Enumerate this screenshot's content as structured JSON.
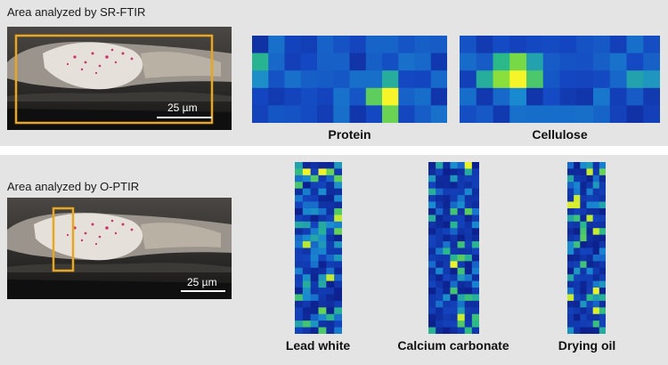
{
  "top": {
    "area_label": "Area analyzed by SR-FTIR",
    "scale_label": "25 µm",
    "maps": [
      {
        "label": "Protein",
        "rows": 5,
        "cols": 12,
        "hot": [
          [
            3,
            8,
            1.0
          ],
          [
            3,
            7,
            0.72
          ],
          [
            4,
            8,
            0.75
          ],
          [
            2,
            8,
            0.55
          ],
          [
            1,
            0,
            0.58
          ],
          [
            2,
            0,
            0.42
          ]
        ]
      },
      {
        "label": "Cellulose",
        "rows": 5,
        "cols": 12,
        "hot": [
          [
            2,
            3,
            1.0
          ],
          [
            2,
            2,
            0.82
          ],
          [
            1,
            3,
            0.78
          ],
          [
            1,
            2,
            0.6
          ],
          [
            2,
            4,
            0.68
          ],
          [
            2,
            1,
            0.55
          ],
          [
            1,
            4,
            0.5
          ],
          [
            2,
            10,
            0.5
          ],
          [
            2,
            11,
            0.45
          ],
          [
            3,
            3,
            0.4
          ]
        ]
      }
    ]
  },
  "bottom": {
    "area_label": "Area analyzed by O-PTIR",
    "scale_label": "25 µm",
    "maps": [
      {
        "label": "Lead white",
        "rows": 26,
        "cols": 6,
        "density": 0.55
      },
      {
        "label": "Calcium carbonate",
        "rows": 26,
        "cols": 7,
        "density": 0.35
      },
      {
        "label": "Drying oil",
        "rows": 26,
        "cols": 6,
        "density": 0.3
      }
    ]
  },
  "colors": {
    "panel_bg": "#e4e4e4",
    "highlight_box": "#e8a623",
    "colormap": [
      "#0a127a",
      "#1447c2",
      "#1a8ad0",
      "#2bb98a",
      "#7fdc3f",
      "#f5f52a"
    ]
  }
}
